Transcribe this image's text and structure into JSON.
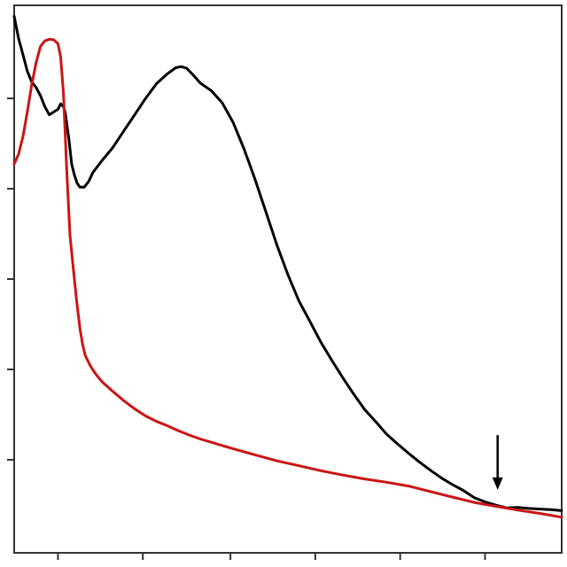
{
  "chart_data": {
    "type": "line",
    "title": "",
    "xlabel": "",
    "ylabel": "",
    "xlim": [
      0,
      100
    ],
    "ylim": [
      0,
      100
    ],
    "x_ticks": [
      8,
      23.5,
      39.5,
      55,
      70.5,
      86
    ],
    "y_ticks": [
      17,
      33.5,
      50,
      66.5,
      83
    ],
    "grid": false,
    "legend": "none",
    "colors": {
      "black_series": "#000000",
      "red_series": "#cc1414",
      "axes": "#333333",
      "arrow": "#000000"
    },
    "series": [
      {
        "color_key": "black_series",
        "x": [
          0,
          0.8,
          1.6,
          2.4,
          3.2,
          4.0,
          4.8,
          5.6,
          6.4,
          7.2,
          8.0,
          8.5,
          9.0,
          9.3,
          9.6,
          10.0,
          10.5,
          11.0,
          11.5,
          12.0,
          12.8,
          13.6,
          14.4,
          16,
          18,
          20,
          22,
          24,
          26,
          28,
          29.5,
          30.5,
          31.5,
          32.5,
          34,
          36,
          38,
          40,
          42,
          44,
          46,
          48,
          50,
          52,
          54,
          56,
          58,
          60,
          62,
          64,
          66,
          68,
          70,
          72,
          74,
          76,
          78,
          80,
          82,
          84,
          86,
          88,
          90,
          92,
          94,
          96,
          98,
          100
        ],
        "y": [
          98,
          94,
          91,
          88,
          86,
          85,
          83.5,
          81.5,
          80,
          80.5,
          81,
          82,
          81.5,
          80.5,
          78.5,
          75.5,
          71,
          69,
          67.5,
          66.8,
          66.8,
          67.8,
          69.5,
          71.6,
          74,
          77,
          80,
          83,
          85.7,
          87.5,
          88.6,
          88.8,
          88.5,
          87.5,
          85.8,
          84.4,
          82.2,
          78.6,
          73.7,
          68.2,
          62.2,
          56.2,
          50.8,
          46,
          42.3,
          38.5,
          35.2,
          32,
          29,
          26.2,
          24,
          21.7,
          19.9,
          18.2,
          16.6,
          15.1,
          13.7,
          12.5,
          11.4,
          10.1,
          9.3,
          8.7,
          8.2,
          8.3,
          8.1,
          8.0,
          7.9,
          7.7
        ]
      },
      {
        "color_key": "red_series",
        "x": [
          0,
          0.8,
          1.6,
          2.4,
          3.2,
          4.0,
          4.8,
          5.6,
          6.4,
          7.2,
          8.0,
          8.5,
          9.0,
          9.6,
          10.2,
          10.8,
          11.4,
          12.0,
          12.5,
          13.0,
          14,
          15,
          16,
          18,
          20,
          22,
          24,
          26,
          28,
          30,
          32,
          34,
          36,
          38,
          40,
          44,
          48,
          52,
          56,
          60,
          64,
          68,
          72,
          76,
          80,
          84,
          88,
          92,
          96,
          100
        ],
        "y": [
          71,
          72.8,
          76,
          80.5,
          85.5,
          89.5,
          92.5,
          93.5,
          93.8,
          93.7,
          93.0,
          90.5,
          84,
          70,
          58,
          52,
          46,
          41,
          38,
          36,
          34,
          32.5,
          31.3,
          29.5,
          27.8,
          26.3,
          25,
          24,
          23.2,
          22.3,
          21.5,
          20.8,
          20.2,
          19.6,
          19.0,
          17.9,
          16.8,
          15.9,
          15.0,
          14.2,
          13.5,
          12.9,
          12.2,
          11.2,
          10.2,
          9.2,
          8.5,
          7.8,
          7.2,
          6.5
        ]
      }
    ],
    "annotations": [
      {
        "type": "arrow",
        "direction": "down",
        "x": 88.3,
        "y_from": 21.5,
        "y_to": 11.5,
        "color_key": "arrow"
      }
    ]
  }
}
